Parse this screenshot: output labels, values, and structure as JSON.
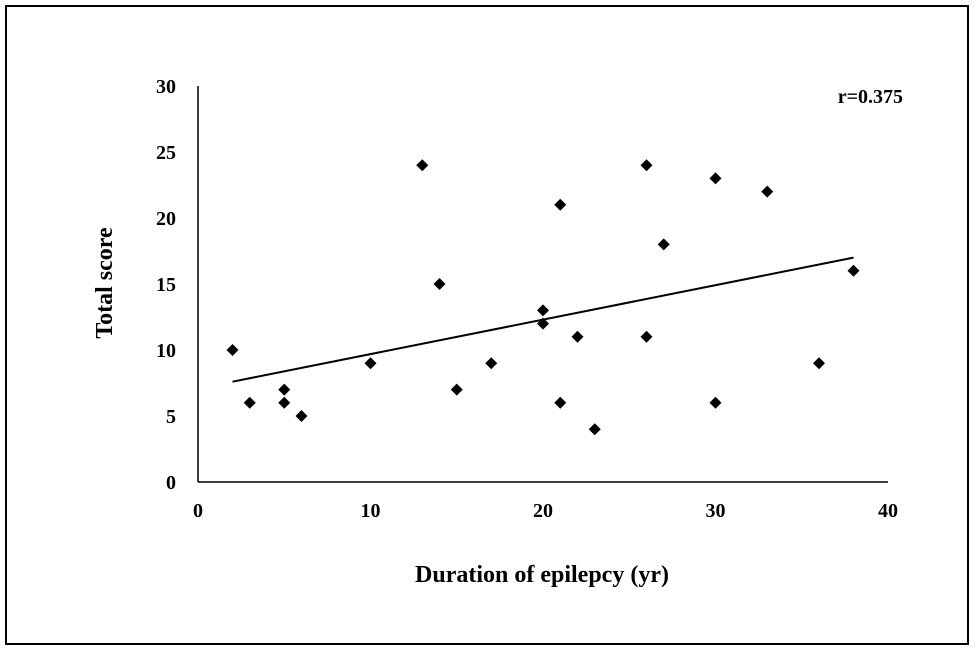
{
  "chart_data": {
    "type": "scatter",
    "title": "",
    "xlabel": "Duration of epilepcy (yr)",
    "ylabel": "Total score",
    "xlim": [
      0,
      40
    ],
    "ylim": [
      0,
      30
    ],
    "x_ticks": [
      0,
      10,
      20,
      30,
      40
    ],
    "y_ticks": [
      0,
      5,
      10,
      15,
      20,
      25,
      30
    ],
    "grid": false,
    "legend": "none",
    "marker": "diamond",
    "marker_color": "#000000",
    "annotation": "r=0.375",
    "series": [
      {
        "points": [
          {
            "x": 2,
            "y": 10
          },
          {
            "x": 3,
            "y": 6
          },
          {
            "x": 5,
            "y": 7
          },
          {
            "x": 5,
            "y": 6
          },
          {
            "x": 6,
            "y": 5
          },
          {
            "x": 10,
            "y": 9
          },
          {
            "x": 13,
            "y": 24
          },
          {
            "x": 14,
            "y": 15
          },
          {
            "x": 15,
            "y": 7
          },
          {
            "x": 17,
            "y": 9
          },
          {
            "x": 20,
            "y": 13
          },
          {
            "x": 20,
            "y": 12
          },
          {
            "x": 21,
            "y": 21
          },
          {
            "x": 21,
            "y": 6
          },
          {
            "x": 22,
            "y": 11
          },
          {
            "x": 23,
            "y": 4
          },
          {
            "x": 26,
            "y": 24
          },
          {
            "x": 26,
            "y": 11
          },
          {
            "x": 27,
            "y": 18
          },
          {
            "x": 30,
            "y": 23
          },
          {
            "x": 30,
            "y": 6
          },
          {
            "x": 33,
            "y": 22
          },
          {
            "x": 36,
            "y": 9
          },
          {
            "x": 38,
            "y": 16
          }
        ]
      }
    ],
    "trendline": {
      "type": "linear",
      "points": [
        {
          "x": 2,
          "y": 7.6
        },
        {
          "x": 38,
          "y": 17.0
        }
      ]
    }
  }
}
